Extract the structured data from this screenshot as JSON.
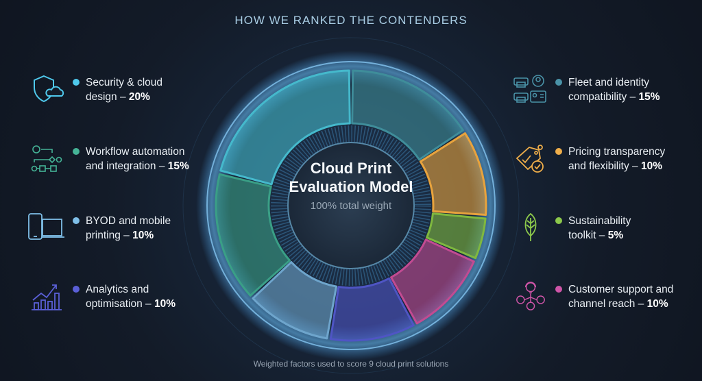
{
  "header": {
    "title": "HOW WE RANKED THE CONTENDERS"
  },
  "center": {
    "title_line1": "Cloud Print",
    "title_line2": "Evaluation Model",
    "subtitle": "100% total weight"
  },
  "footer": {
    "caption": "Weighted factors used to score 9 cloud print solutions"
  },
  "left_items": [
    {
      "line1": "Security & cloud",
      "line2": "design – ",
      "weight": "20%",
      "color": "#4fc9ec",
      "icon": "shield-cloud-icon"
    },
    {
      "line1": "Workflow automation",
      "line2": "and integration – ",
      "weight": "15%",
      "color": "#45b396",
      "icon": "workflow-icon"
    },
    {
      "line1": "BYOD and mobile",
      "line2": "printing – ",
      "weight": "10%",
      "color": "#7fbfe8",
      "icon": "mobile-laptop-icon"
    },
    {
      "line1": "Analytics and",
      "line2": "optimisation – ",
      "weight": "10%",
      "color": "#5a5fd6",
      "icon": "analytics-chart-icon"
    }
  ],
  "right_items": [
    {
      "line1": "Fleet and identity",
      "line2": "compatibility – ",
      "weight": "15%",
      "color": "#4a93a8",
      "icon": "printer-identity-icon"
    },
    {
      "line1": "Pricing transparency",
      "line2": "and flexibility – ",
      "weight": "10%",
      "color": "#efae4a",
      "icon": "price-tag-check-icon"
    },
    {
      "line1": "Sustainability",
      "line2": "toolkit – ",
      "weight": "5%",
      "color": "#8cc84b",
      "icon": "leaf-icon"
    },
    {
      "line1": "Customer support and",
      "line2": "channel reach – ",
      "weight": "10%",
      "color": "#cf55a8",
      "icon": "support-network-icon"
    }
  ],
  "chart_data": {
    "type": "pie",
    "donut": true,
    "order": "clockwise from top",
    "categories": [
      "Fleet and identity compatibility",
      "Pricing transparency and flexibility",
      "Sustainability toolkit",
      "Customer support and channel reach",
      "Analytics and optimisation",
      "BYOD and mobile printing",
      "Workflow automation and integration",
      "Security & cloud design"
    ],
    "values": [
      15,
      10,
      5,
      10,
      10,
      10,
      15,
      20
    ],
    "unit": "%",
    "colors": [
      "#3f8d9a",
      "#e8a33d",
      "#7fb83f",
      "#c24b92",
      "#4f55c4",
      "#6ea5cc",
      "#3a9f86",
      "#45b9cc"
    ]
  }
}
